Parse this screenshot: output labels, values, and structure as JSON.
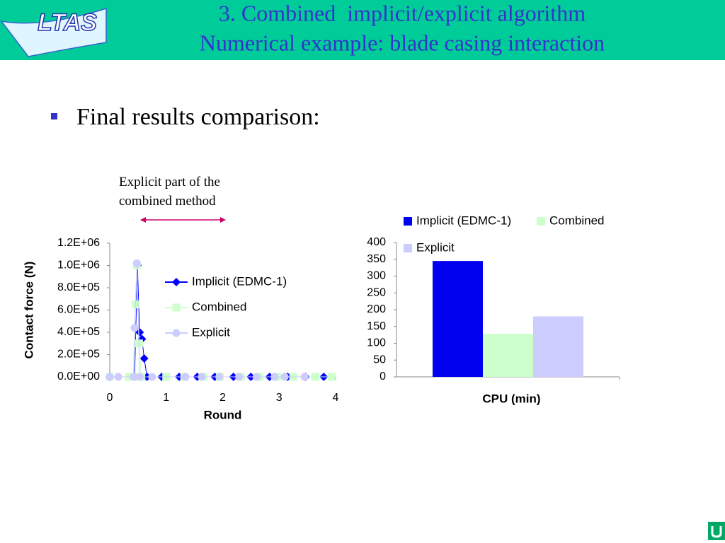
{
  "header": {
    "logo": "LTAS",
    "title_lines": [
      "3. Combined  implicit/explicit algorithm",
      "Numerical example: blade casing interaction"
    ]
  },
  "bullet": "Final results comparison:",
  "chart_data": [
    {
      "type": "line",
      "annotation": "Explicit part of the combined method",
      "x_label": "Round",
      "y_label": "Contact force (N)",
      "xlim": [
        0,
        4
      ],
      "xticks": [
        0,
        1,
        2,
        3,
        4
      ],
      "ylim": [
        0,
        1200000
      ],
      "yticks": [
        {
          "value": 0,
          "label": "0.0E+00"
        },
        {
          "value": 200000,
          "label": "2.0E+05"
        },
        {
          "value": 400000,
          "label": "4.0E+05"
        },
        {
          "value": 600000,
          "label": "6.0E+05"
        },
        {
          "value": 800000,
          "label": "8.0E+05"
        },
        {
          "value": 1000000,
          "label": "1.0E+06"
        },
        {
          "value": 1200000,
          "label": "1.2E+06"
        }
      ],
      "series": [
        {
          "name": "Implicit (EDMC-1)",
          "color": "#0000ff",
          "marker": "diamond",
          "x": [
            0,
            0.44,
            0.49,
            0.53,
            0.57,
            0.61,
            0.66,
            0.92,
            1.23,
            1.55,
            1.86,
            2.19,
            2.5,
            2.83,
            3.15,
            3.47,
            3.79
          ],
          "values": [
            0,
            0,
            1000000,
            400000,
            340000,
            165000,
            0,
            0,
            0,
            0,
            0,
            0,
            0,
            0,
            0,
            0,
            0
          ]
        },
        {
          "name": "Combined",
          "color": "#ccffcc",
          "marker": "square",
          "x": [
            0,
            0.34,
            0.43,
            0.46,
            0.48,
            0.52,
            0.56,
            1.0,
            1.32,
            1.66,
            1.95,
            2.32,
            2.65,
            2.97,
            3.25,
            3.64,
            3.93
          ],
          "values": [
            0,
            0,
            0,
            650000,
            1000000,
            300000,
            0,
            0,
            0,
            0,
            0,
            0,
            0,
            0,
            0,
            0,
            0
          ]
        },
        {
          "name": "Explicit",
          "color": "#ccccff",
          "marker": "circle",
          "x": [
            0,
            0.15,
            0.42,
            0.44,
            0.48,
            0.53,
            0.75,
            1.34,
            1.63,
            1.94,
            2.29,
            2.6,
            2.92,
            3.1,
            3.45
          ],
          "values": [
            0,
            0,
            0,
            440000,
            1020000,
            0,
            0,
            0,
            0,
            0,
            0,
            0,
            0,
            0,
            0
          ]
        }
      ]
    },
    {
      "type": "bar",
      "x_label": "CPU (min)",
      "categories": [
        null
      ],
      "ylim": [
        0,
        400
      ],
      "yticks": [
        0,
        50,
        100,
        150,
        200,
        250,
        300,
        350,
        400
      ],
      "series": [
        {
          "name": "Implicit (EDMC-1)",
          "color": "#0000ee",
          "values": [
            345
          ]
        },
        {
          "name": "Combined",
          "color": "#ccffcc",
          "values": [
            128
          ]
        },
        {
          "name": "Explicit",
          "color": "#ccccff",
          "values": [
            180
          ]
        }
      ]
    }
  ]
}
